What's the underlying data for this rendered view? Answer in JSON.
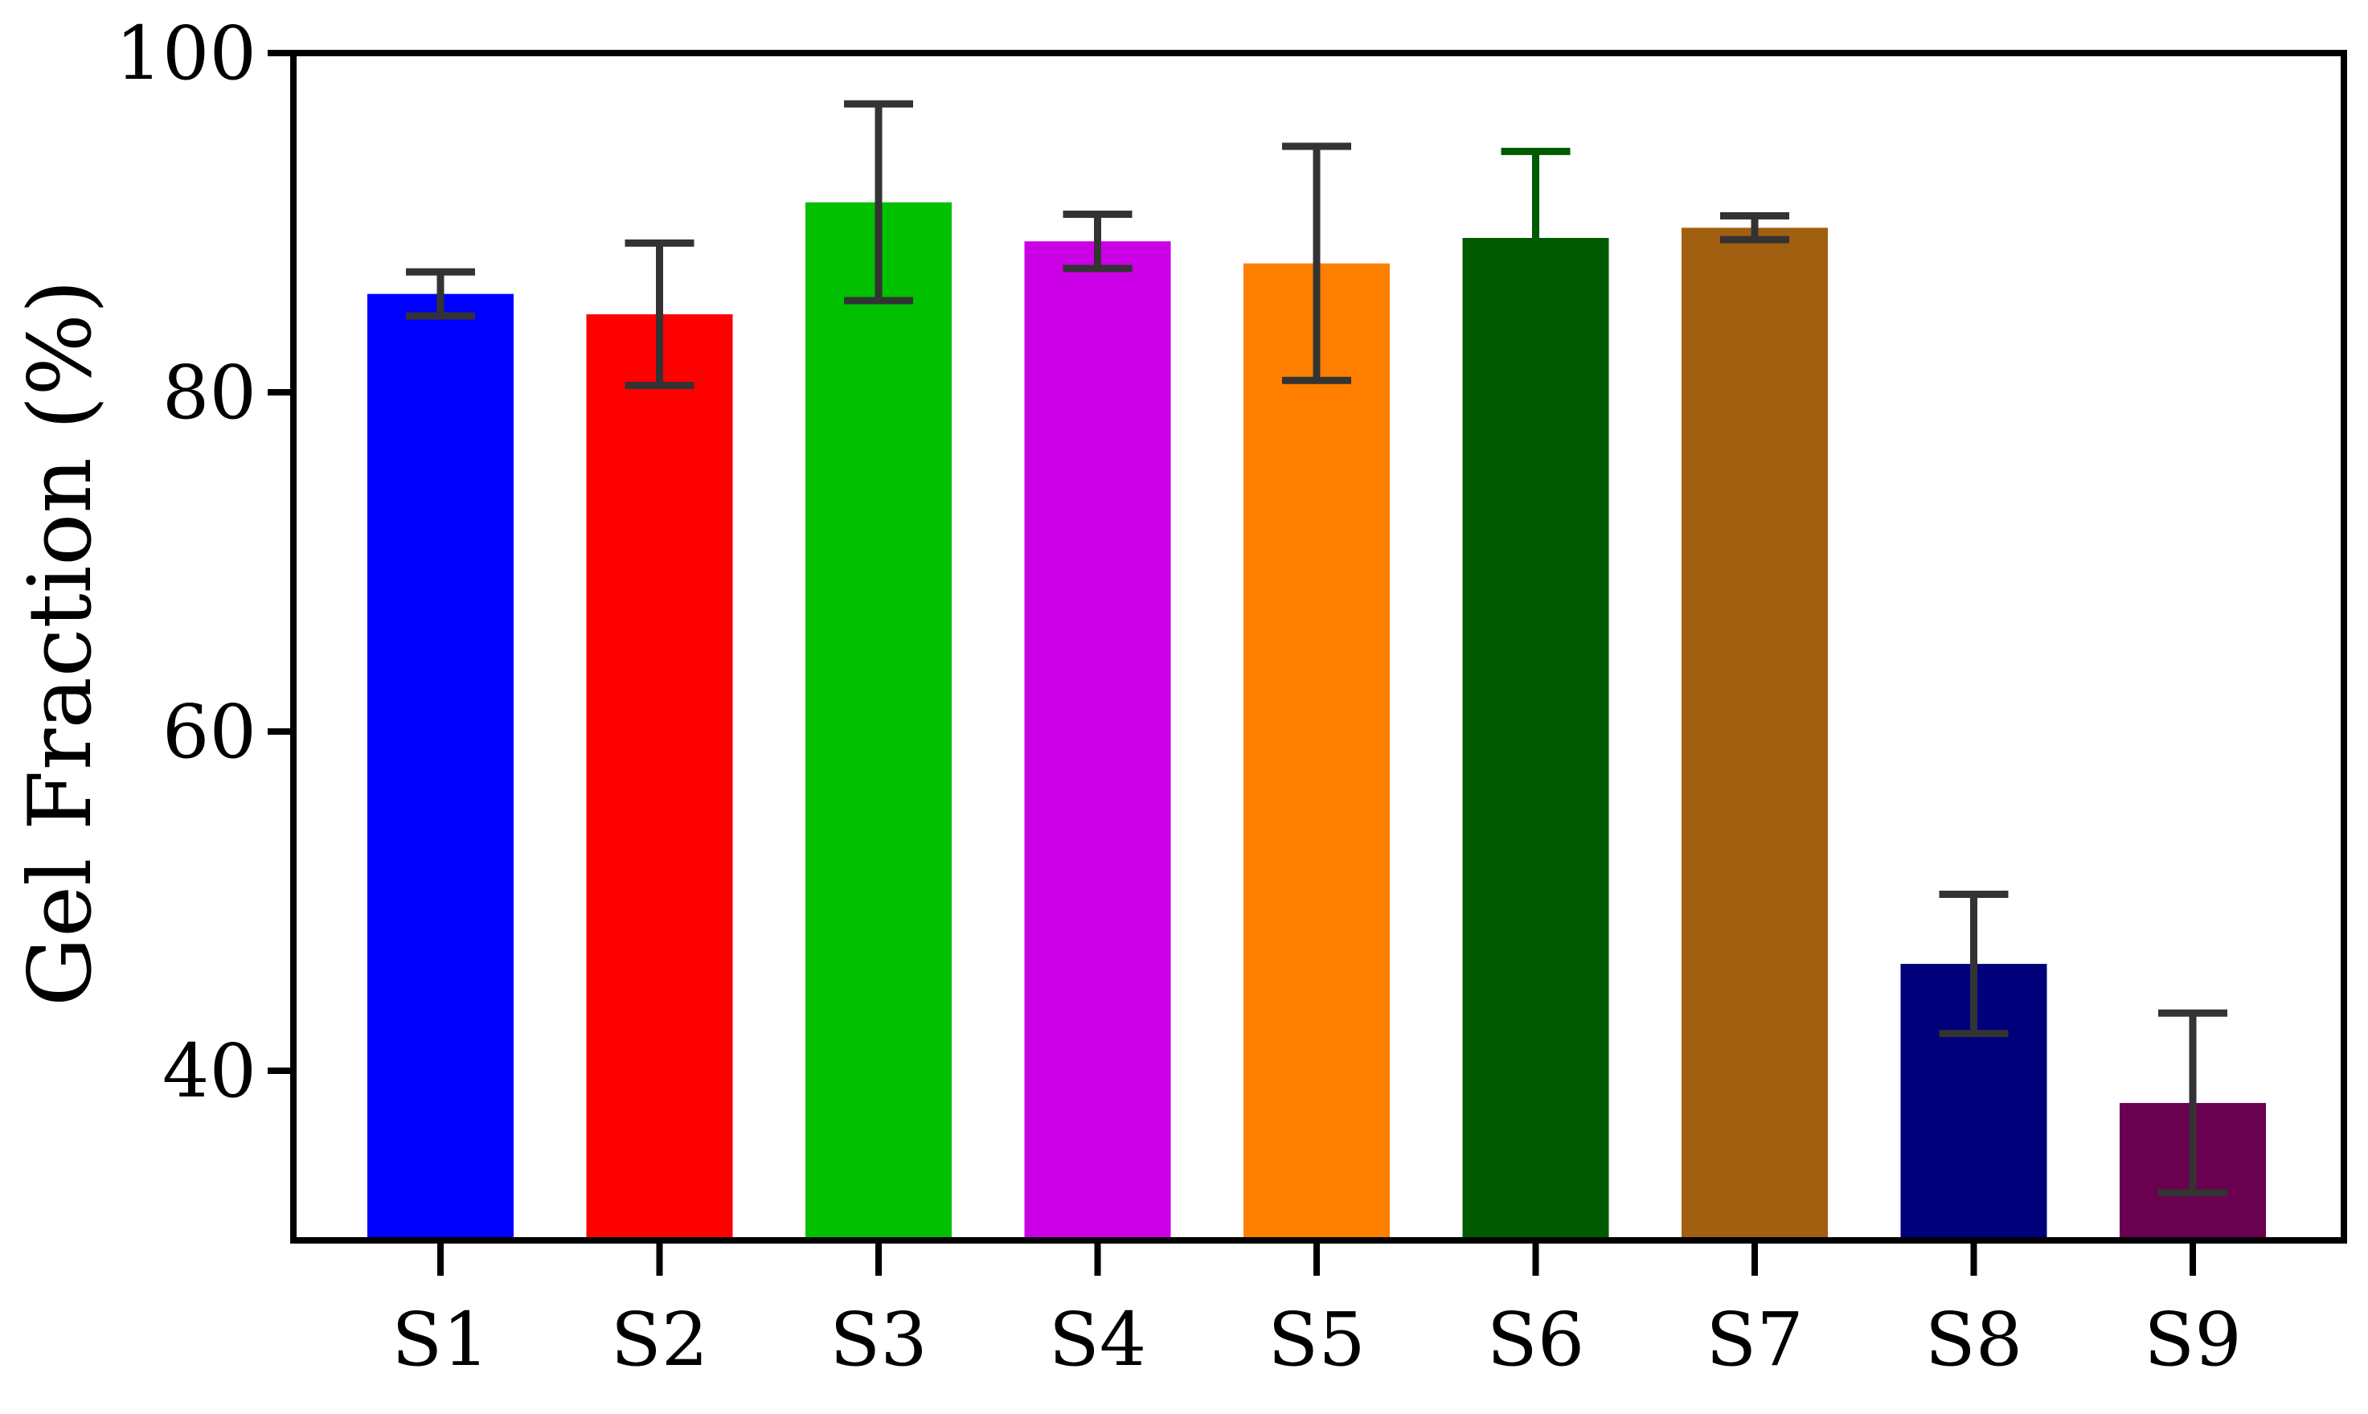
{
  "chart_data": {
    "type": "bar",
    "title": "",
    "xlabel": "",
    "ylabel": "Gel Fraction (%)",
    "ylim": [
      30,
      100
    ],
    "yticks": [
      40,
      60,
      80,
      100
    ],
    "grid": false,
    "legend": "none",
    "categories": [
      "S1",
      "S2",
      "S3",
      "S4",
      "S5",
      "S6",
      "S7",
      "S8",
      "S9"
    ],
    "values": [
      85.8,
      84.6,
      91.2,
      88.9,
      87.6,
      89.1,
      89.7,
      46.3,
      38.1
    ],
    "errors": [
      1.3,
      4.2,
      5.8,
      1.6,
      6.9,
      5.1,
      0.7,
      4.1,
      5.3
    ],
    "colors": [
      "#0000ff",
      "#ff0000",
      "#00c000",
      "#cc00e6",
      "#ff8000",
      "#005a00",
      "#a0600f",
      "#00007a",
      "#6a0050"
    ],
    "error_colors": [
      "#333333",
      "#333333",
      "#333333",
      "#333333",
      "#333333",
      "#005a00",
      "#333333",
      "#333333",
      "#333333"
    ]
  }
}
